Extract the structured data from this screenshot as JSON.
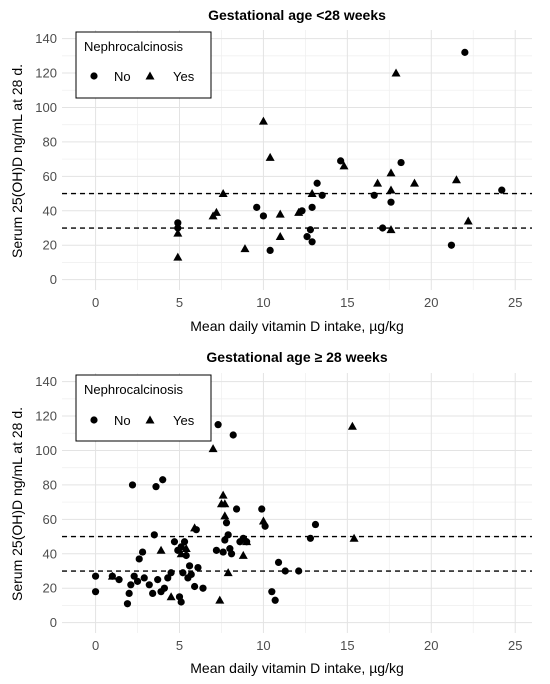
{
  "chart_data": [
    {
      "type": "scatter",
      "title": "Gestational age <28 weeks",
      "xlabel": "Mean daily vitamin D intake, µg/kg",
      "ylabel": "Serum 25(OH)D ng/mL at 28 d.",
      "xlim": [
        -2,
        26
      ],
      "ylim": [
        -6,
        145
      ],
      "xticks": [
        0,
        5,
        10,
        15,
        20,
        25
      ],
      "yticks": [
        0,
        20,
        40,
        60,
        80,
        100,
        120,
        140
      ],
      "grid": true,
      "hlines": [
        30,
        50
      ],
      "legend": {
        "title": "Nephrocalcinosis",
        "placement": "top-left",
        "entries": [
          "No",
          "Yes"
        ]
      },
      "series": [
        {
          "name": "No",
          "marker": "circle",
          "points": [
            [
              4.9,
              33
            ],
            [
              4.9,
              30
            ],
            [
              9.6,
              42
            ],
            [
              10.0,
              37
            ],
            [
              10.4,
              17
            ],
            [
              12.3,
              40
            ],
            [
              12.6,
              25
            ],
            [
              12.9,
              22
            ],
            [
              12.8,
              29
            ],
            [
              12.9,
              42
            ],
            [
              13.2,
              56
            ],
            [
              13.5,
              49
            ],
            [
              14.6,
              69
            ],
            [
              16.6,
              49
            ],
            [
              17.1,
              30
            ],
            [
              17.6,
              45
            ],
            [
              18.2,
              68
            ],
            [
              21.2,
              20
            ],
            [
              22.0,
              132
            ],
            [
              24.2,
              52
            ]
          ]
        },
        {
          "name": "Yes",
          "marker": "triangle",
          "points": [
            [
              4.9,
              13
            ],
            [
              4.9,
              27
            ],
            [
              7.0,
              37
            ],
            [
              7.2,
              39
            ],
            [
              7.6,
              50
            ],
            [
              8.9,
              18
            ],
            [
              10.0,
              92
            ],
            [
              10.4,
              71
            ],
            [
              11.0,
              25
            ],
            [
              11.0,
              38
            ],
            [
              12.1,
              39
            ],
            [
              12.9,
              50
            ],
            [
              14.8,
              66
            ],
            [
              16.8,
              56
            ],
            [
              17.6,
              52
            ],
            [
              17.6,
              62
            ],
            [
              17.6,
              29
            ],
            [
              17.9,
              120
            ],
            [
              19.0,
              56
            ],
            [
              21.5,
              58
            ],
            [
              22.2,
              34
            ]
          ]
        }
      ]
    },
    {
      "type": "scatter",
      "title": "Gestational age ≥ 28 weeks",
      "xlabel": "Mean daily vitamin D intake, µg/kg",
      "ylabel": "Serum 25(OH)D ng/mL at 28 d.",
      "xlim": [
        -2,
        26
      ],
      "ylim": [
        -6,
        145
      ],
      "xticks": [
        0,
        5,
        10,
        15,
        20,
        25
      ],
      "yticks": [
        0,
        20,
        40,
        60,
        80,
        100,
        120,
        140
      ],
      "grid": true,
      "hlines": [
        30,
        50
      ],
      "legend": {
        "title": "Nephrocalcinosis",
        "placement": "top-left",
        "entries": [
          "No",
          "Yes"
        ]
      },
      "series": [
        {
          "name": "No",
          "marker": "circle",
          "points": [
            [
              0.0,
              27
            ],
            [
              0.0,
              18
            ],
            [
              1.0,
              27
            ],
            [
              1.4,
              25
            ],
            [
              1.9,
              11
            ],
            [
              2.0,
              17
            ],
            [
              2.1,
              22
            ],
            [
              2.2,
              80
            ],
            [
              2.3,
              27
            ],
            [
              2.5,
              24
            ],
            [
              2.6,
              37
            ],
            [
              2.8,
              41
            ],
            [
              2.9,
              26
            ],
            [
              3.2,
              22
            ],
            [
              3.4,
              17
            ],
            [
              3.5,
              51
            ],
            [
              3.6,
              79
            ],
            [
              3.7,
              25
            ],
            [
              3.9,
              18
            ],
            [
              4.0,
              83
            ],
            [
              4.1,
              20
            ],
            [
              4.3,
              26
            ],
            [
              4.5,
              29
            ],
            [
              4.7,
              47
            ],
            [
              4.9,
              42
            ],
            [
              5.0,
              15
            ],
            [
              5.1,
              12
            ],
            [
              5.1,
              44
            ],
            [
              5.2,
              29
            ],
            [
              5.3,
              47
            ],
            [
              5.4,
              39
            ],
            [
              5.5,
              26
            ],
            [
              5.6,
              33
            ],
            [
              5.7,
              28
            ],
            [
              5.9,
              21
            ],
            [
              6.0,
              54
            ],
            [
              6.1,
              32
            ],
            [
              6.4,
              20
            ],
            [
              7.2,
              42
            ],
            [
              7.3,
              115
            ],
            [
              7.6,
              41
            ],
            [
              7.7,
              48
            ],
            [
              7.8,
              58
            ],
            [
              7.9,
              51
            ],
            [
              8.0,
              43
            ],
            [
              8.1,
              40
            ],
            [
              8.2,
              109
            ],
            [
              8.4,
              66
            ],
            [
              8.6,
              47
            ],
            [
              8.8,
              49
            ],
            [
              9.0,
              47
            ],
            [
              9.9,
              66
            ],
            [
              10.1,
              56
            ],
            [
              10.5,
              18
            ],
            [
              10.7,
              13
            ],
            [
              10.9,
              35
            ],
            [
              11.3,
              30
            ],
            [
              12.1,
              30
            ],
            [
              12.8,
              49
            ],
            [
              13.1,
              57
            ]
          ]
        },
        {
          "name": "Yes",
          "marker": "triangle",
          "points": [
            [
              1.0,
              27
            ],
            [
              3.9,
              42
            ],
            [
              4.5,
              15
            ],
            [
              5.1,
              40
            ],
            [
              5.4,
              43
            ],
            [
              5.9,
              55
            ],
            [
              7.0,
              101
            ],
            [
              7.4,
              13
            ],
            [
              7.5,
              69
            ],
            [
              7.6,
              74
            ],
            [
              7.7,
              62
            ],
            [
              7.7,
              69
            ],
            [
              7.9,
              29
            ],
            [
              8.8,
              39
            ],
            [
              9.0,
              47
            ],
            [
              10.0,
              59
            ],
            [
              15.3,
              114
            ],
            [
              15.4,
              49
            ]
          ]
        }
      ]
    }
  ]
}
